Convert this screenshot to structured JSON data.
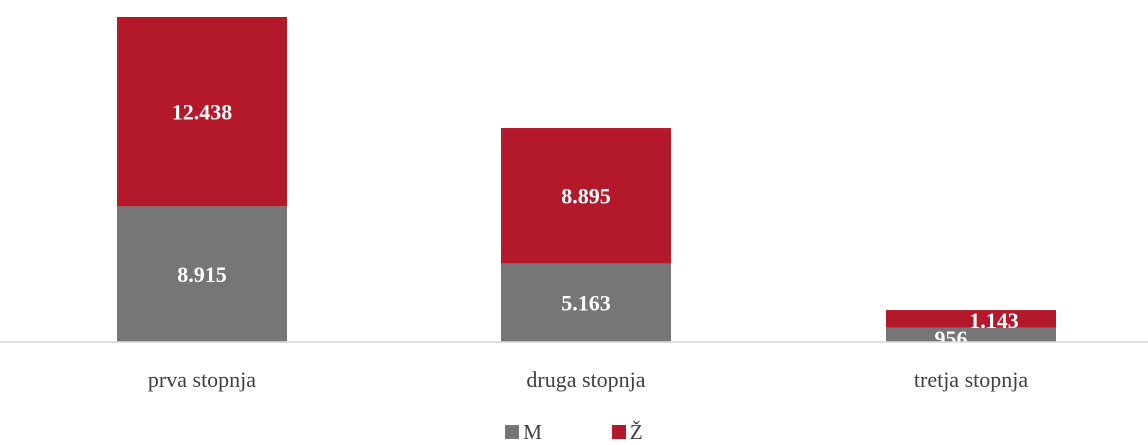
{
  "colors": {
    "m": "#767676",
    "z": "#b3182b",
    "axis": "#d9d9d9",
    "text": "#404040"
  },
  "chart_data": {
    "type": "bar",
    "stacked": true,
    "categories": [
      "prva stopnja",
      "druga stopnja",
      "tretja stopnja"
    ],
    "series": [
      {
        "name": "M",
        "values": [
          8915,
          5163,
          956
        ],
        "labels": [
          "8.915",
          "5.163",
          "956"
        ]
      },
      {
        "name": "Ž",
        "values": [
          12438,
          8895,
          1143
        ],
        "labels": [
          "12.438",
          "8.895",
          "1.143"
        ]
      }
    ],
    "title": "",
    "xlabel": "",
    "ylabel": "",
    "ylim": [
      0,
      21353
    ],
    "grid": false,
    "legend": "bottom"
  },
  "legend": {
    "m_label": "M",
    "z_label": "Ž"
  }
}
